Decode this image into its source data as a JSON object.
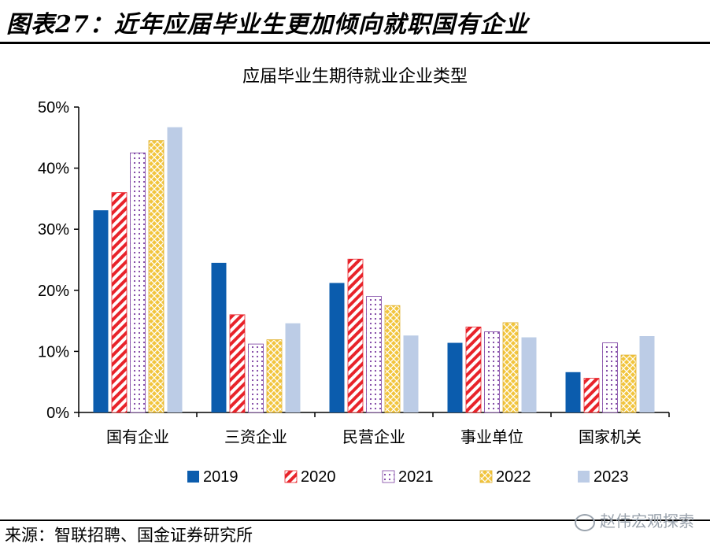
{
  "figure_title": "图表27：近年应届毕业生更加倾向就职国有企业",
  "source_text": "来源：智联招聘、国金证券研究所",
  "watermark_text": "赵伟宏观探索",
  "colors": {
    "2019": "#0b5cad",
    "2020": "#e8232a",
    "2021": "#7a3ea1",
    "2022": "#f2c53d",
    "2023": "#bccce6"
  },
  "chart_data": {
    "type": "bar",
    "title": "应届毕业生期待就业企业类型",
    "categories": [
      "国有企业",
      "三资企业",
      "民营企业",
      "事业单位",
      "国家机关"
    ],
    "series": [
      {
        "name": "2019",
        "values": [
          33.1,
          24.5,
          21.2,
          11.4,
          6.6
        ]
      },
      {
        "name": "2020",
        "values": [
          36.0,
          16.0,
          25.1,
          14.0,
          5.6
        ]
      },
      {
        "name": "2021",
        "values": [
          42.5,
          11.2,
          19.0,
          13.2,
          11.4
        ]
      },
      {
        "name": "2022",
        "values": [
          44.5,
          11.9,
          17.5,
          14.7,
          9.4
        ]
      },
      {
        "name": "2023",
        "values": [
          46.7,
          14.6,
          12.6,
          12.3,
          12.5
        ]
      }
    ],
    "ylim": [
      0,
      50
    ],
    "yticks": [
      "0%",
      "10%",
      "20%",
      "30%",
      "40%",
      "50%"
    ],
    "legend_position": "bottom",
    "grid": false
  }
}
